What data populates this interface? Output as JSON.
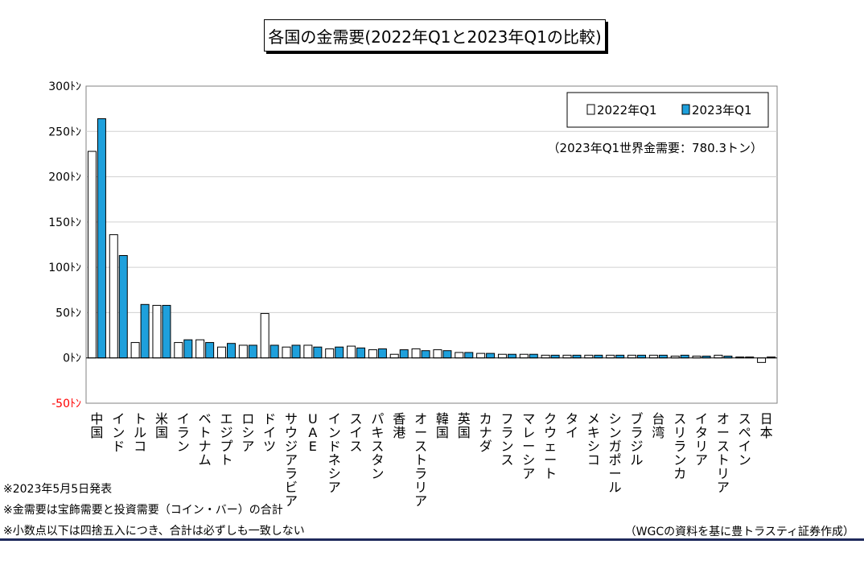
{
  "title": "各国の金需要(2022年Q1と2023年Q1の比較)",
  "chart_data": {
    "type": "bar",
    "categories": [
      "中国",
      "インド",
      "トルコ",
      "米国",
      "イラン",
      "ベトナム",
      "エジプト",
      "ロシア",
      "ドイツ",
      "サウジアラビア",
      "UAE",
      "インドネシア",
      "スイス",
      "パキスタン",
      "香港",
      "オーストラリア",
      "韓国",
      "英国",
      "カナダ",
      "フランス",
      "マレーシア",
      "クウェート",
      "タイ",
      "メキシコ",
      "シンガポール",
      "ブラジル",
      "台湾",
      "スリランカ",
      "イタリア",
      "オーストリア",
      "スペイン",
      "日本"
    ],
    "series": [
      {
        "name": "2022年Q1",
        "color": "#ffffff",
        "values": [
          228,
          136,
          17,
          58,
          17,
          20,
          12,
          14,
          49,
          12,
          14,
          10,
          13,
          9,
          4,
          10,
          9,
          6,
          5,
          4,
          4,
          3,
          3,
          3,
          3,
          3,
          3,
          2,
          2,
          3,
          1,
          -5
        ]
      },
      {
        "name": "2023年Q1",
        "color": "#1ea0dc",
        "values": [
          264,
          113,
          59,
          58,
          20,
          17,
          16,
          14,
          14,
          14,
          12,
          12,
          11,
          10,
          9,
          8,
          8,
          6,
          5,
          4,
          4,
          3,
          3,
          3,
          3,
          3,
          3,
          3,
          2,
          2,
          1,
          1
        ]
      }
    ],
    "y_ticks": [
      {
        "value": 300,
        "label": "300ﾄﾝ"
      },
      {
        "value": 250,
        "label": "250ﾄﾝ"
      },
      {
        "value": 200,
        "label": "200ﾄﾝ"
      },
      {
        "value": 150,
        "label": "150ﾄﾝ"
      },
      {
        "value": 100,
        "label": "100ﾄﾝ"
      },
      {
        "value": 50,
        "label": "50ﾄﾝ"
      },
      {
        "value": 0,
        "label": "0ﾄﾝ"
      },
      {
        "value": -50,
        "label": "-50ﾄﾝ"
      }
    ],
    "ylim": [
      -50,
      300
    ],
    "grid": true,
    "legend_position": "top-right",
    "annotation": "（2023年Q1世界金需要：780.3トン）"
  },
  "notes": [
    "※2023年5月5日発表",
    "※金需要は宝飾需要と投資需要（コイン・バー）の合計",
    "※小数点以下は四捨五入につき、合計は必ずしも一致しない"
  ],
  "source": "（WGCの資料を基に豊トラスティ証券作成）",
  "colors": {
    "negative_tick": "#ff0000",
    "footer_rule": "#1f2a5c",
    "grid": "#d0d0d0"
  }
}
